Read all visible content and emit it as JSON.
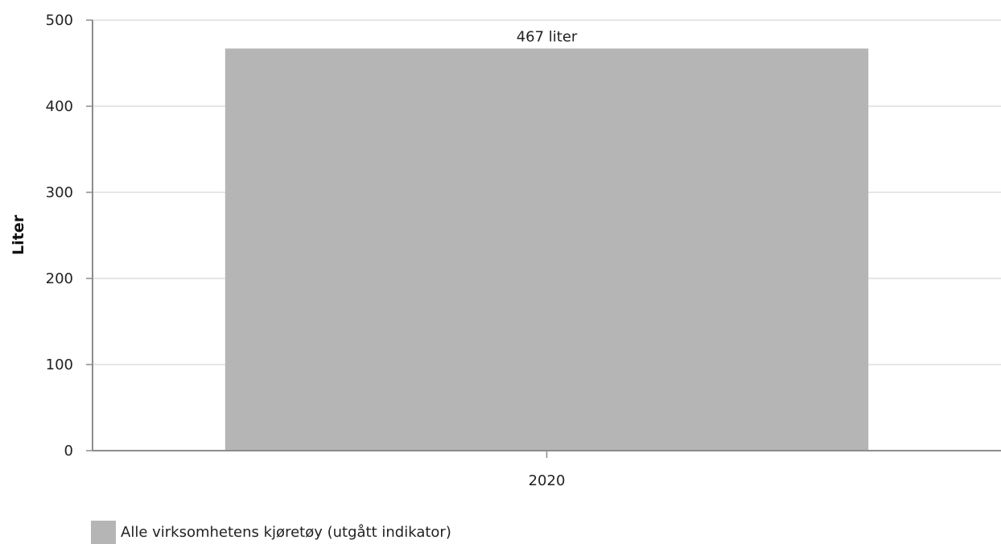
{
  "chart_data": {
    "type": "bar",
    "categories": [
      "2020"
    ],
    "series": [
      {
        "name": "Alle virksomhetens kjøretøy (utgått indikator)",
        "values": [
          467
        ],
        "data_labels": [
          "467 liter"
        ],
        "color": "#b5b5b5"
      }
    ],
    "ylabel": "Liter",
    "ylim": [
      0,
      500
    ],
    "yticks": [
      0,
      100,
      200,
      300,
      400,
      500
    ],
    "grid": true,
    "legend_position": "bottom-left"
  },
  "colors": {
    "gridline": "#e6e6e6",
    "axis": "#8c8c8c",
    "text": "#222222"
  }
}
